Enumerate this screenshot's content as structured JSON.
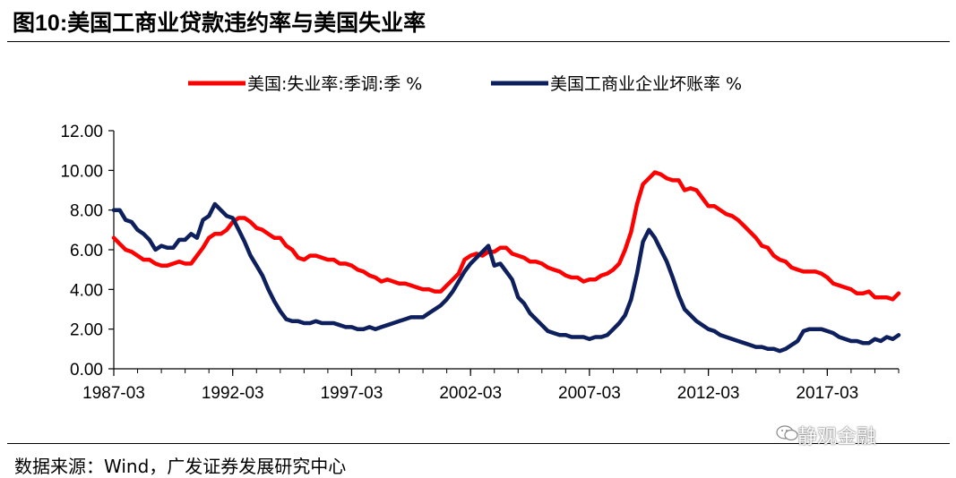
{
  "figure": {
    "title_prefix": "图",
    "title_number": "10:",
    "title_text": "美国工商业贷款违约率与美国失业率",
    "source": "数据来源：Wind，广发证券发展研究中心",
    "watermark": "静观金融"
  },
  "chart_data": {
    "type": "line",
    "title": "美国工商业贷款违约率与美国失业率",
    "xlabel": "",
    "ylabel": "",
    "ylim": [
      0,
      12
    ],
    "y_ticks": [
      "0.00",
      "2.00",
      "4.00",
      "6.00",
      "8.00",
      "10.00",
      "12.00"
    ],
    "x_ticks": [
      "1987-03",
      "1992-03",
      "1997-03",
      "2002-03",
      "2007-03",
      "2012-03",
      "2017-03"
    ],
    "x_range": [
      "1987-03",
      "2020-03"
    ],
    "grid": false,
    "legend_position": "top",
    "series": [
      {
        "name": "美国:失业率:季调:季 %",
        "color": "#ff0000",
        "points": [
          [
            "1987-03",
            6.6
          ],
          [
            "1987-06",
            6.3
          ],
          [
            "1987-09",
            6.0
          ],
          [
            "1987-12",
            5.9
          ],
          [
            "1988-03",
            5.7
          ],
          [
            "1988-06",
            5.5
          ],
          [
            "1988-09",
            5.5
          ],
          [
            "1988-12",
            5.3
          ],
          [
            "1989-03",
            5.2
          ],
          [
            "1989-06",
            5.2
          ],
          [
            "1989-09",
            5.3
          ],
          [
            "1989-12",
            5.4
          ],
          [
            "1990-03",
            5.3
          ],
          [
            "1990-06",
            5.3
          ],
          [
            "1990-09",
            5.7
          ],
          [
            "1990-12",
            6.1
          ],
          [
            "1991-03",
            6.6
          ],
          [
            "1991-06",
            6.8
          ],
          [
            "1991-09",
            6.8
          ],
          [
            "1991-12",
            7.0
          ],
          [
            "1992-03",
            7.4
          ],
          [
            "1992-06",
            7.6
          ],
          [
            "1992-09",
            7.6
          ],
          [
            "1992-12",
            7.4
          ],
          [
            "1993-03",
            7.1
          ],
          [
            "1993-06",
            7.0
          ],
          [
            "1993-09",
            6.8
          ],
          [
            "1993-12",
            6.6
          ],
          [
            "1994-03",
            6.6
          ],
          [
            "1994-06",
            6.2
          ],
          [
            "1994-09",
            6.0
          ],
          [
            "1994-12",
            5.6
          ],
          [
            "1995-03",
            5.5
          ],
          [
            "1995-06",
            5.7
          ],
          [
            "1995-09",
            5.7
          ],
          [
            "1995-12",
            5.6
          ],
          [
            "1996-03",
            5.5
          ],
          [
            "1996-06",
            5.5
          ],
          [
            "1996-09",
            5.3
          ],
          [
            "1996-12",
            5.3
          ],
          [
            "1997-03",
            5.2
          ],
          [
            "1997-06",
            5.0
          ],
          [
            "1997-09",
            4.9
          ],
          [
            "1997-12",
            4.7
          ],
          [
            "1998-03",
            4.6
          ],
          [
            "1998-06",
            4.4
          ],
          [
            "1998-09",
            4.5
          ],
          [
            "1998-12",
            4.4
          ],
          [
            "1999-03",
            4.3
          ],
          [
            "1999-06",
            4.3
          ],
          [
            "1999-09",
            4.2
          ],
          [
            "1999-12",
            4.1
          ],
          [
            "2000-03",
            4.0
          ],
          [
            "2000-06",
            4.0
          ],
          [
            "2000-09",
            3.9
          ],
          [
            "2000-12",
            3.9
          ],
          [
            "2001-03",
            4.2
          ],
          [
            "2001-06",
            4.5
          ],
          [
            "2001-09",
            4.8
          ],
          [
            "2001-12",
            5.5
          ],
          [
            "2002-03",
            5.7
          ],
          [
            "2002-06",
            5.8
          ],
          [
            "2002-09",
            5.7
          ],
          [
            "2002-12",
            5.9
          ],
          [
            "2003-03",
            5.9
          ],
          [
            "2003-06",
            6.1
          ],
          [
            "2003-09",
            6.1
          ],
          [
            "2003-12",
            5.8
          ],
          [
            "2004-03",
            5.7
          ],
          [
            "2004-06",
            5.6
          ],
          [
            "2004-09",
            5.4
          ],
          [
            "2004-12",
            5.4
          ],
          [
            "2005-03",
            5.3
          ],
          [
            "2005-06",
            5.1
          ],
          [
            "2005-09",
            5.0
          ],
          [
            "2005-12",
            4.9
          ],
          [
            "2006-03",
            4.7
          ],
          [
            "2006-06",
            4.6
          ],
          [
            "2006-09",
            4.6
          ],
          [
            "2006-12",
            4.4
          ],
          [
            "2007-03",
            4.5
          ],
          [
            "2007-06",
            4.5
          ],
          [
            "2007-09",
            4.7
          ],
          [
            "2007-12",
            4.8
          ],
          [
            "2008-03",
            5.0
          ],
          [
            "2008-06",
            5.3
          ],
          [
            "2008-09",
            6.0
          ],
          [
            "2008-12",
            6.9
          ],
          [
            "2009-03",
            8.3
          ],
          [
            "2009-06",
            9.3
          ],
          [
            "2009-09",
            9.6
          ],
          [
            "2009-12",
            9.9
          ],
          [
            "2010-03",
            9.8
          ],
          [
            "2010-06",
            9.6
          ],
          [
            "2010-09",
            9.5
          ],
          [
            "2010-12",
            9.5
          ],
          [
            "2011-03",
            9.0
          ],
          [
            "2011-06",
            9.1
          ],
          [
            "2011-09",
            9.0
          ],
          [
            "2011-12",
            8.6
          ],
          [
            "2012-03",
            8.2
          ],
          [
            "2012-06",
            8.2
          ],
          [
            "2012-09",
            8.0
          ],
          [
            "2012-12",
            7.8
          ],
          [
            "2013-03",
            7.7
          ],
          [
            "2013-06",
            7.5
          ],
          [
            "2013-09",
            7.2
          ],
          [
            "2013-12",
            6.9
          ],
          [
            "2014-03",
            6.6
          ],
          [
            "2014-06",
            6.2
          ],
          [
            "2014-09",
            6.1
          ],
          [
            "2014-12",
            5.7
          ],
          [
            "2015-03",
            5.5
          ],
          [
            "2015-06",
            5.4
          ],
          [
            "2015-09",
            5.1
          ],
          [
            "2015-12",
            5.0
          ],
          [
            "2016-03",
            4.9
          ],
          [
            "2016-06",
            4.9
          ],
          [
            "2016-09",
            4.9
          ],
          [
            "2016-12",
            4.8
          ],
          [
            "2017-03",
            4.6
          ],
          [
            "2017-06",
            4.3
          ],
          [
            "2017-09",
            4.2
          ],
          [
            "2017-12",
            4.1
          ],
          [
            "2018-03",
            4.0
          ],
          [
            "2018-06",
            3.8
          ],
          [
            "2018-09",
            3.8
          ],
          [
            "2018-12",
            3.9
          ],
          [
            "2019-03",
            3.6
          ],
          [
            "2019-06",
            3.6
          ],
          [
            "2019-09",
            3.6
          ],
          [
            "2019-12",
            3.5
          ],
          [
            "2020-03",
            3.8
          ]
        ]
      },
      {
        "name": "美国工商业企业坏账率 %",
        "color": "#0d1f5c",
        "points": [
          [
            "1987-03",
            8.0
          ],
          [
            "1987-06",
            8.0
          ],
          [
            "1987-09",
            7.5
          ],
          [
            "1987-12",
            7.4
          ],
          [
            "1988-03",
            7.0
          ],
          [
            "1988-06",
            6.8
          ],
          [
            "1988-09",
            6.5
          ],
          [
            "1988-12",
            6.0
          ],
          [
            "1989-03",
            6.2
          ],
          [
            "1989-06",
            6.1
          ],
          [
            "1989-09",
            6.1
          ],
          [
            "1989-12",
            6.5
          ],
          [
            "1990-03",
            6.5
          ],
          [
            "1990-06",
            6.8
          ],
          [
            "1990-09",
            6.6
          ],
          [
            "1990-12",
            7.5
          ],
          [
            "1991-03",
            7.7
          ],
          [
            "1991-06",
            8.3
          ],
          [
            "1991-09",
            8.0
          ],
          [
            "1991-12",
            7.7
          ],
          [
            "1992-03",
            7.6
          ],
          [
            "1992-06",
            7.0
          ],
          [
            "1992-09",
            6.4
          ],
          [
            "1992-12",
            5.7
          ],
          [
            "1993-03",
            5.2
          ],
          [
            "1993-06",
            4.7
          ],
          [
            "1993-09",
            4.0
          ],
          [
            "1993-12",
            3.4
          ],
          [
            "1994-03",
            2.9
          ],
          [
            "1994-06",
            2.5
          ],
          [
            "1994-09",
            2.4
          ],
          [
            "1994-12",
            2.4
          ],
          [
            "1995-03",
            2.3
          ],
          [
            "1995-06",
            2.3
          ],
          [
            "1995-09",
            2.4
          ],
          [
            "1995-12",
            2.3
          ],
          [
            "1996-03",
            2.3
          ],
          [
            "1996-06",
            2.3
          ],
          [
            "1996-09",
            2.2
          ],
          [
            "1996-12",
            2.1
          ],
          [
            "1997-03",
            2.1
          ],
          [
            "1997-06",
            2.0
          ],
          [
            "1997-09",
            2.0
          ],
          [
            "1997-12",
            2.1
          ],
          [
            "1998-03",
            2.0
          ],
          [
            "1998-06",
            2.1
          ],
          [
            "1998-09",
            2.2
          ],
          [
            "1998-12",
            2.3
          ],
          [
            "1999-03",
            2.4
          ],
          [
            "1999-06",
            2.5
          ],
          [
            "1999-09",
            2.6
          ],
          [
            "1999-12",
            2.6
          ],
          [
            "2000-03",
            2.6
          ],
          [
            "2000-06",
            2.8
          ],
          [
            "2000-09",
            3.0
          ],
          [
            "2000-12",
            3.2
          ],
          [
            "2001-03",
            3.5
          ],
          [
            "2001-06",
            3.9
          ],
          [
            "2001-09",
            4.4
          ],
          [
            "2001-12",
            4.9
          ],
          [
            "2002-03",
            5.3
          ],
          [
            "2002-06",
            5.6
          ],
          [
            "2002-09",
            5.9
          ],
          [
            "2002-12",
            6.2
          ],
          [
            "2003-03",
            5.2
          ],
          [
            "2003-06",
            5.3
          ],
          [
            "2003-09",
            4.9
          ],
          [
            "2003-12",
            4.5
          ],
          [
            "2004-03",
            3.6
          ],
          [
            "2004-06",
            3.3
          ],
          [
            "2004-09",
            2.8
          ],
          [
            "2004-12",
            2.5
          ],
          [
            "2005-03",
            2.2
          ],
          [
            "2005-06",
            1.9
          ],
          [
            "2005-09",
            1.8
          ],
          [
            "2005-12",
            1.7
          ],
          [
            "2006-03",
            1.7
          ],
          [
            "2006-06",
            1.6
          ],
          [
            "2006-09",
            1.6
          ],
          [
            "2006-12",
            1.6
          ],
          [
            "2007-03",
            1.5
          ],
          [
            "2007-06",
            1.6
          ],
          [
            "2007-09",
            1.6
          ],
          [
            "2007-12",
            1.7
          ],
          [
            "2008-03",
            2.0
          ],
          [
            "2008-06",
            2.3
          ],
          [
            "2008-09",
            2.7
          ],
          [
            "2008-12",
            3.5
          ],
          [
            "2009-03",
            4.8
          ],
          [
            "2009-06",
            6.4
          ],
          [
            "2009-09",
            7.0
          ],
          [
            "2009-12",
            6.6
          ],
          [
            "2010-03",
            6.0
          ],
          [
            "2010-06",
            5.4
          ],
          [
            "2010-09",
            4.6
          ],
          [
            "2010-12",
            3.7
          ],
          [
            "2011-03",
            3.0
          ],
          [
            "2011-06",
            2.7
          ],
          [
            "2011-09",
            2.4
          ],
          [
            "2011-12",
            2.2
          ],
          [
            "2012-03",
            2.0
          ],
          [
            "2012-06",
            1.9
          ],
          [
            "2012-09",
            1.7
          ],
          [
            "2012-12",
            1.6
          ],
          [
            "2013-03",
            1.5
          ],
          [
            "2013-06",
            1.4
          ],
          [
            "2013-09",
            1.3
          ],
          [
            "2013-12",
            1.2
          ],
          [
            "2014-03",
            1.1
          ],
          [
            "2014-06",
            1.1
          ],
          [
            "2014-09",
            1.0
          ],
          [
            "2014-12",
            1.0
          ],
          [
            "2015-03",
            0.9
          ],
          [
            "2015-06",
            1.0
          ],
          [
            "2015-09",
            1.2
          ],
          [
            "2015-12",
            1.4
          ],
          [
            "2016-03",
            1.9
          ],
          [
            "2016-06",
            2.0
          ],
          [
            "2016-09",
            2.0
          ],
          [
            "2016-12",
            2.0
          ],
          [
            "2017-03",
            1.9
          ],
          [
            "2017-06",
            1.8
          ],
          [
            "2017-09",
            1.6
          ],
          [
            "2017-12",
            1.5
          ],
          [
            "2018-03",
            1.4
          ],
          [
            "2018-06",
            1.4
          ],
          [
            "2018-09",
            1.3
          ],
          [
            "2018-12",
            1.3
          ],
          [
            "2019-03",
            1.5
          ],
          [
            "2019-06",
            1.4
          ],
          [
            "2019-09",
            1.6
          ],
          [
            "2019-12",
            1.5
          ],
          [
            "2020-03",
            1.7
          ]
        ]
      }
    ]
  }
}
